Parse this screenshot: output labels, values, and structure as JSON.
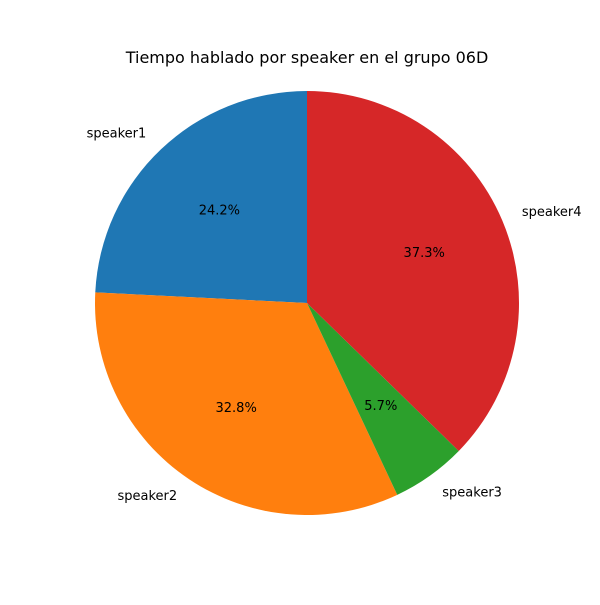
{
  "chart_data": {
    "type": "pie",
    "title": "Tiempo hablado por speaker en el grupo 06D",
    "labels": [
      "speaker1",
      "speaker2",
      "speaker3",
      "speaker4"
    ],
    "values": [
      24.2,
      32.8,
      5.7,
      37.3
    ],
    "pct_labels": [
      "24.2%",
      "32.8%",
      "5.7%",
      "37.3%"
    ],
    "colors": [
      "#1f77b4",
      "#ff7f0e",
      "#2ca02c",
      "#d62728"
    ],
    "start_angle_deg": 90,
    "direction": "counterclockwise",
    "legend": "none"
  }
}
